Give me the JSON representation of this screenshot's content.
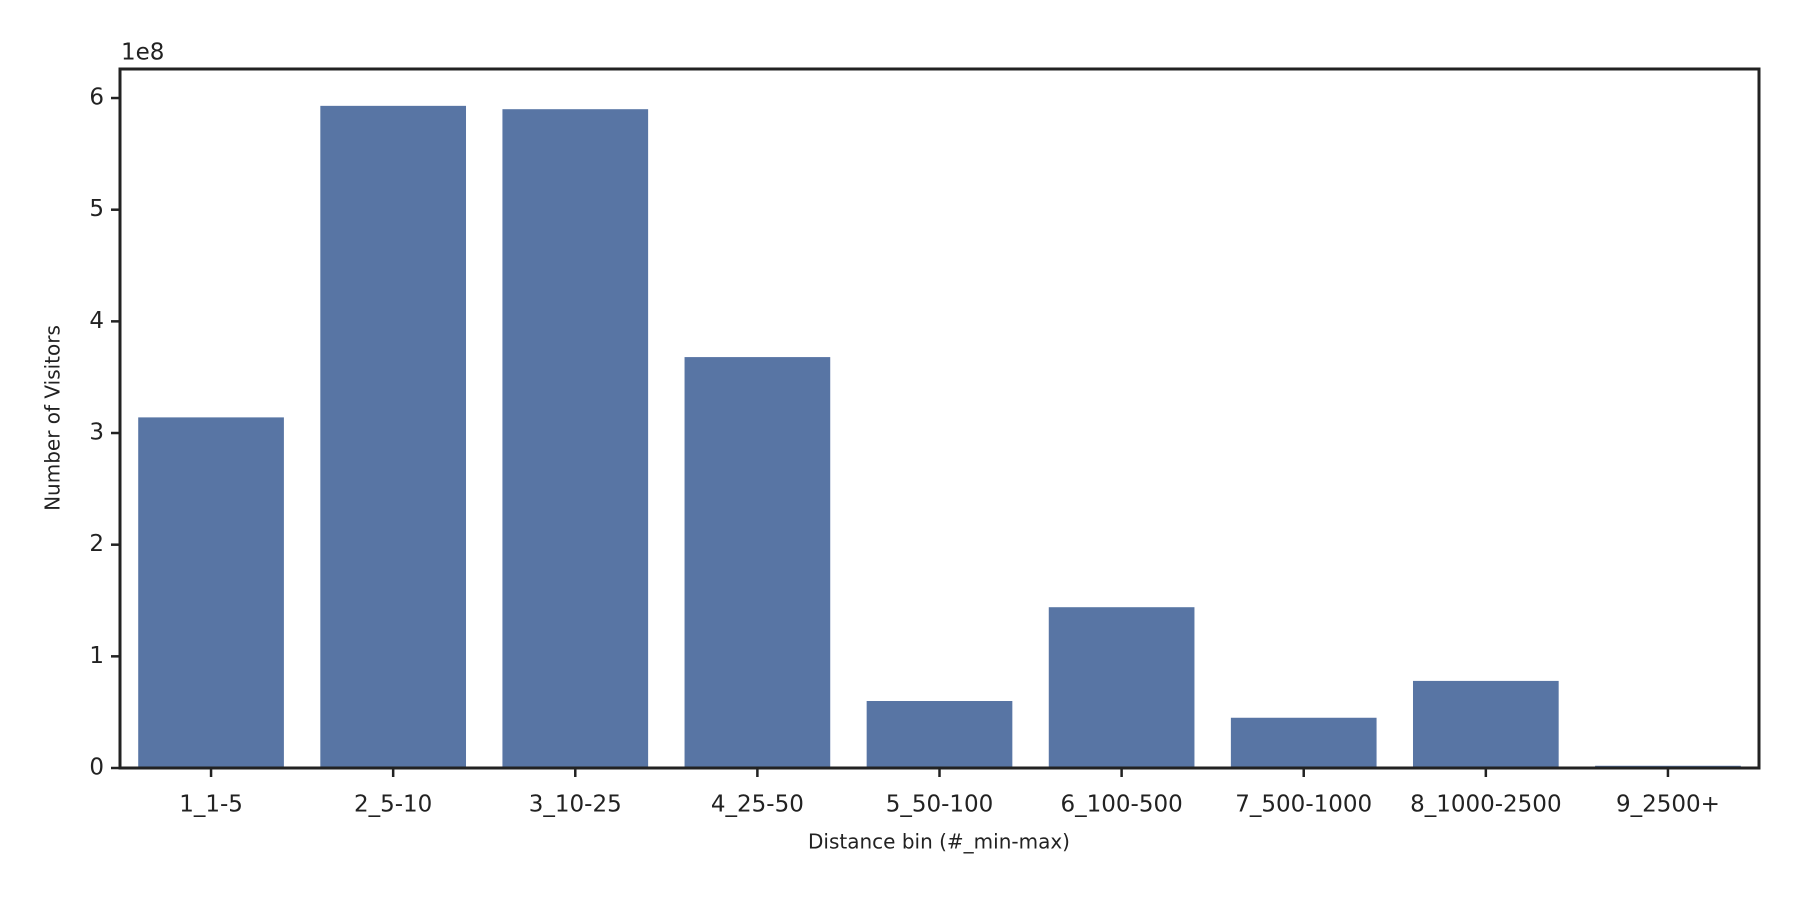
{
  "chart_data": {
    "type": "bar",
    "x_label": "Distance bin (#_min-max)",
    "y_label": "Number of Visitors",
    "y_offset_label": "1e8",
    "categories": [
      "1_1-5",
      "2_5-10",
      "3_10-25",
      "4_25-50",
      "5_50-100",
      "6_100-500",
      "7_500-1000",
      "8_1000-2500",
      "9_2500+"
    ],
    "values": [
      3.14,
      5.93,
      5.9,
      3.68,
      0.6,
      1.44,
      0.45,
      0.78,
      0.02
    ],
    "color": "#5875a4",
    "ylim": [
      0,
      6.26
    ],
    "yticks": [
      0,
      1,
      2,
      3,
      4,
      5,
      6
    ],
    "grid": false
  }
}
